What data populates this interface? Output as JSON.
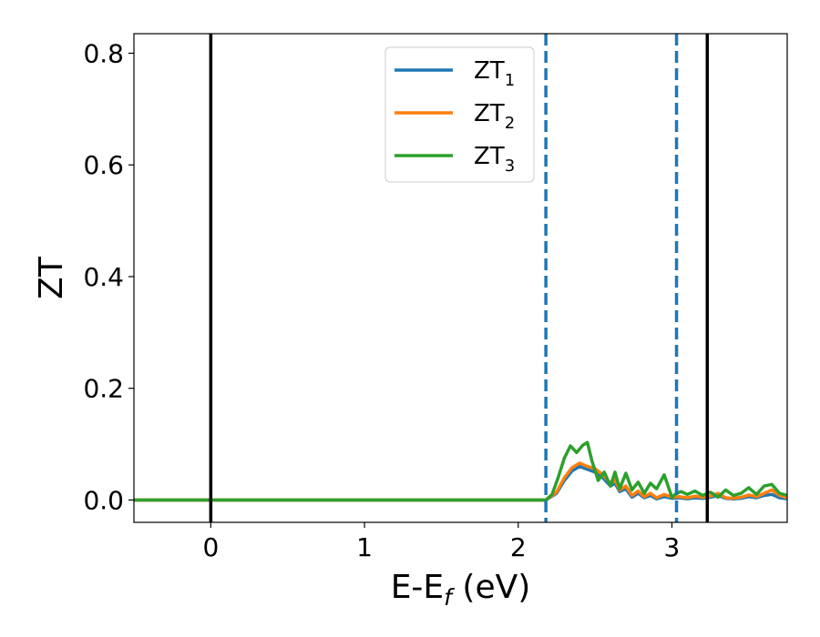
{
  "chart_data": {
    "type": "line",
    "xlabel": "E-E",
    "xlabel_sub": "f",
    "xlabel_unit": " (eV)",
    "ylabel": "ZT",
    "xlim": [
      -0.5,
      3.75
    ],
    "ylim": [
      -0.04,
      0.835
    ],
    "xticks": [
      0,
      1,
      2,
      3
    ],
    "xtick_labels": [
      "0",
      "1",
      "2",
      "3"
    ],
    "yticks": [
      0.0,
      0.2,
      0.4,
      0.6,
      0.8
    ],
    "ytick_labels": [
      "0.0",
      "0.2",
      "0.4",
      "0.6",
      "0.8"
    ],
    "grid": false,
    "legend_position": "top-center",
    "vertical_lines": [
      {
        "x": 0.0,
        "style": "solid",
        "color": "#000000"
      },
      {
        "x": 2.18,
        "style": "dashed",
        "color": "#1f77b4"
      },
      {
        "x": 3.03,
        "style": "dashed",
        "color": "#1f77b4"
      },
      {
        "x": 3.23,
        "style": "solid",
        "color": "#000000"
      }
    ],
    "series": [
      {
        "name": "ZT",
        "name_sub": "1",
        "color": "#1f77b4",
        "x": [
          -0.5,
          2.18,
          2.25,
          2.3,
          2.35,
          2.4,
          2.45,
          2.5,
          2.55,
          2.6,
          2.63,
          2.66,
          2.7,
          2.74,
          2.78,
          2.82,
          2.86,
          2.9,
          2.95,
          3.0,
          3.05,
          3.1,
          3.15,
          3.2,
          3.25,
          3.3,
          3.35,
          3.4,
          3.45,
          3.5,
          3.55,
          3.6,
          3.65,
          3.7,
          3.75
        ],
        "y": [
          0.0,
          0.0,
          0.012,
          0.035,
          0.052,
          0.06,
          0.055,
          0.05,
          0.04,
          0.025,
          0.03,
          0.015,
          0.02,
          0.005,
          0.012,
          0.004,
          0.008,
          0.002,
          0.006,
          0.003,
          0.004,
          0.002,
          0.004,
          0.003,
          0.005,
          0.008,
          0.003,
          0.002,
          0.003,
          0.006,
          0.004,
          0.008,
          0.01,
          0.004,
          0.002
        ]
      },
      {
        "name": "ZT",
        "name_sub": "2",
        "color": "#ff7f0e",
        "x": [
          -0.5,
          2.18,
          2.25,
          2.3,
          2.35,
          2.4,
          2.45,
          2.5,
          2.55,
          2.6,
          2.63,
          2.66,
          2.7,
          2.74,
          2.78,
          2.82,
          2.86,
          2.9,
          2.95,
          3.0,
          3.05,
          3.1,
          3.15,
          3.2,
          3.25,
          3.3,
          3.35,
          3.4,
          3.45,
          3.5,
          3.55,
          3.6,
          3.65,
          3.7,
          3.75
        ],
        "y": [
          0.0,
          0.0,
          0.014,
          0.04,
          0.058,
          0.066,
          0.06,
          0.056,
          0.045,
          0.03,
          0.036,
          0.018,
          0.025,
          0.008,
          0.016,
          0.006,
          0.012,
          0.004,
          0.01,
          0.005,
          0.006,
          0.004,
          0.007,
          0.005,
          0.007,
          0.012,
          0.004,
          0.003,
          0.005,
          0.009,
          0.006,
          0.012,
          0.018,
          0.008,
          0.004
        ]
      },
      {
        "name": "ZT",
        "name_sub": "3",
        "color": "#2ca02c",
        "x": [
          -0.5,
          2.18,
          2.22,
          2.26,
          2.3,
          2.34,
          2.38,
          2.42,
          2.45,
          2.48,
          2.52,
          2.56,
          2.6,
          2.63,
          2.66,
          2.7,
          2.74,
          2.78,
          2.82,
          2.86,
          2.9,
          2.95,
          3.0,
          3.03,
          3.06,
          3.1,
          3.15,
          3.2,
          3.25,
          3.3,
          3.35,
          3.4,
          3.45,
          3.5,
          3.55,
          3.6,
          3.65,
          3.7,
          3.75
        ],
        "y": [
          0.0,
          0.0,
          0.01,
          0.04,
          0.075,
          0.097,
          0.085,
          0.098,
          0.103,
          0.07,
          0.035,
          0.05,
          0.025,
          0.05,
          0.02,
          0.048,
          0.018,
          0.032,
          0.012,
          0.03,
          0.02,
          0.045,
          0.005,
          0.012,
          0.015,
          0.01,
          0.016,
          0.008,
          0.014,
          0.005,
          0.018,
          0.008,
          0.012,
          0.022,
          0.01,
          0.025,
          0.028,
          0.012,
          0.008
        ]
      }
    ]
  }
}
